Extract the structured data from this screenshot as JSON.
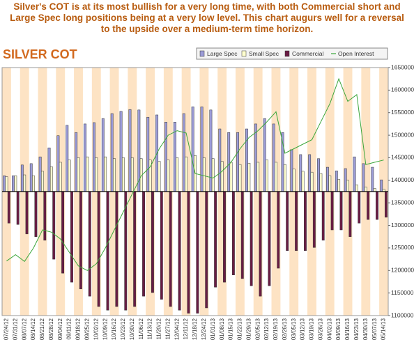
{
  "chart_data": {
    "type": "cot",
    "note": "Silver's COT is at its most bullish for a very long time, with both Commercial short and Large Spec long positions being at a very low level. This chart augurs well for a reversal to the upside over a medium-term time horizon.",
    "title": "SILVER COT",
    "categories": [
      "07/24/12",
      "07/31/12",
      "08/07/12",
      "08/14/12",
      "08/21/12",
      "08/28/12",
      "09/04/12",
      "09/11/12",
      "09/18/12",
      "09/25/12",
      "10/02/12",
      "10/09/12",
      "10/16/12",
      "10/23/12",
      "10/30/12",
      "11/06/12",
      "11/13/12",
      "11/20/12",
      "11/27/12",
      "12/04/12",
      "12/11/12",
      "12/18/12",
      "12/24/12",
      "01/01/13",
      "01/08/13",
      "01/15/13",
      "01/22/13",
      "01/29/13",
      "02/05/13",
      "02/12/13",
      "02/19/13",
      "02/26/13",
      "03/05/13",
      "03/12/13",
      "03/19/13",
      "03/26/13",
      "04/02/13",
      "04/09/13",
      "04/16/13",
      "04/23/13",
      "04/30/13",
      "05/07/13",
      "05/14/13"
    ],
    "series": [
      {
        "name": "Large Spec",
        "kind": "bar",
        "color": "#9c9cd8",
        "values": [
          1410000,
          1410000,
          1434000,
          1437000,
          1452000,
          1472000,
          1499000,
          1522000,
          1506000,
          1525000,
          1528000,
          1537000,
          1548000,
          1553000,
          1557000,
          1556000,
          1540000,
          1545000,
          1529000,
          1529000,
          1548000,
          1563000,
          1563000,
          1556000,
          1514000,
          1506000,
          1506000,
          1514000,
          1525000,
          1537000,
          1525000,
          1506000,
          1468000,
          1457000,
          1457000,
          1448000,
          1429000,
          1421000,
          1426000,
          1452000,
          1437000,
          1429000,
          1401000
        ]
      },
      {
        "name": "Small Spec",
        "kind": "bar",
        "color": "#ffffd0",
        "values": [
          1408000,
          1410000,
          1412000,
          1410000,
          1420000,
          1430000,
          1440000,
          1445000,
          1450000,
          1452000,
          1450000,
          1452000,
          1448000,
          1450000,
          1450000,
          1448000,
          1445000,
          1442000,
          1445000,
          1450000,
          1452000,
          1455000,
          1450000,
          1448000,
          1442000,
          1440000,
          1435000,
          1438000,
          1440000,
          1445000,
          1440000,
          1435000,
          1425000,
          1420000,
          1418000,
          1415000,
          1410000,
          1402000,
          1400000,
          1390000,
          1385000,
          1382000,
          1380000
        ]
      },
      {
        "name": "Commercial",
        "kind": "bar",
        "color": "#6a1c44",
        "values": [
          1305000,
          1302000,
          1281000,
          1275000,
          1267000,
          1225000,
          1194000,
          1174000,
          1159000,
          1143000,
          1120000,
          1112000,
          1120000,
          1112000,
          1120000,
          1143000,
          1151000,
          1136000,
          1120000,
          1112000,
          1105000,
          1105000,
          1117000,
          1163000,
          1174000,
          1190000,
          1182000,
          1166000,
          1143000,
          1166000,
          1205000,
          1244000,
          1244000,
          1244000,
          1251000,
          1267000,
          1290000,
          1290000,
          1275000,
          1305000,
          1313000,
          1313000,
          1318000
        ]
      },
      {
        "name": "Open Interest",
        "kind": "line",
        "color": "#3aa63a",
        "values": [
          1221000,
          1235000,
          1220000,
          1250000,
          1290000,
          1285000,
          1270000,
          1240000,
          1210000,
          1200000,
          1215000,
          1250000,
          1290000,
          1330000,
          1370000,
          1410000,
          1430000,
          1470000,
          1500000,
          1510000,
          1505000,
          1415000,
          1410000,
          1405000,
          1420000,
          1440000,
          1470000,
          1495000,
          1510000,
          1530000,
          1552000,
          1460000,
          1470000,
          1480000,
          1490000,
          1530000,
          1570000,
          1625000,
          1575000,
          1590000,
          1435000,
          1440000,
          1445000
        ]
      }
    ],
    "bar_base": 1375000,
    "ylim": [
      1100000,
      1650000
    ],
    "yticks": [
      1100000,
      1150000,
      1200000,
      1250000,
      1300000,
      1350000,
      1400000,
      1450000,
      1500000,
      1550000,
      1600000,
      1650000
    ],
    "stripe_color": "#fde3c4",
    "grid": false
  }
}
